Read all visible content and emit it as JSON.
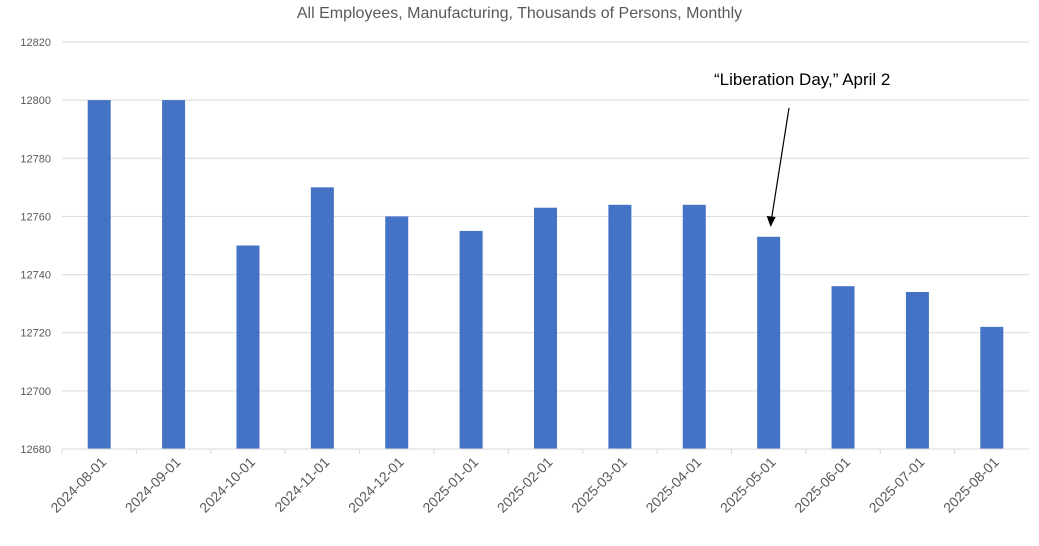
{
  "chart_data": {
    "type": "bar",
    "title": "All Employees, Manufacturing, Thousands of Persons, Monthly",
    "xlabel": "",
    "ylabel": "",
    "ylim": [
      12680,
      12820
    ],
    "yticks": [
      12680,
      12700,
      12720,
      12740,
      12760,
      12780,
      12800,
      12820
    ],
    "grid": true,
    "categories": [
      "2024-08-01",
      "2024-09-01",
      "2024-10-01",
      "2024-11-01",
      "2024-12-01",
      "2025-01-01",
      "2025-02-01",
      "2025-03-01",
      "2025-04-01",
      "2025-05-01",
      "2025-06-01",
      "2025-07-01",
      "2025-08-01"
    ],
    "values": [
      12800,
      12800,
      12750,
      12770,
      12760,
      12755,
      12763,
      12764,
      12764,
      12753,
      12736,
      12734,
      12722
    ],
    "bar_color": "#4472C4",
    "annotations": [
      {
        "text": "“Liberation Day,” April 2",
        "points_to": "2025-05-01"
      }
    ]
  }
}
